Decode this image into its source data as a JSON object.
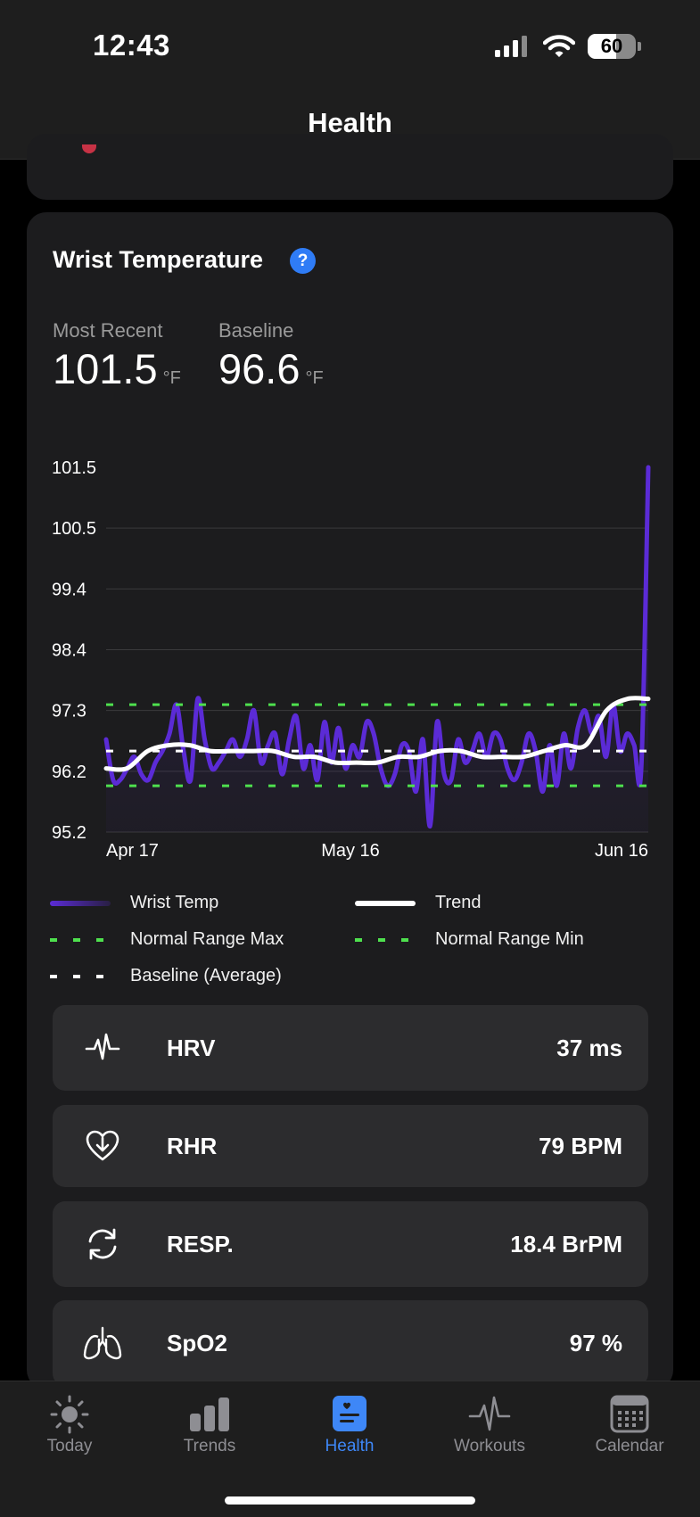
{
  "status_bar": {
    "time": "12:43",
    "battery_percent": "60",
    "battery_level": 0.6
  },
  "header": {
    "title": "Health"
  },
  "card": {
    "title": "Wrist Temperature",
    "help_icon": "question-mark-icon",
    "most_recent": {
      "label": "Most Recent",
      "value": "101.5",
      "unit": "°F"
    },
    "baseline": {
      "label": "Baseline",
      "value": "96.6",
      "unit": "°F"
    }
  },
  "chart_data": {
    "type": "line",
    "y_ticks": [
      "101.5",
      "100.5",
      "99.4",
      "98.4",
      "97.3",
      "96.2",
      "95.2"
    ],
    "x_ticks": [
      "Apr 17",
      "May 16",
      "Jun 16"
    ],
    "ylim": [
      95.2,
      101.5
    ],
    "grid": "y",
    "series": [
      {
        "name": "Wrist Temp",
        "color": "#5b2bd6",
        "kind": "line",
        "values": [
          96.8,
          96.1,
          96.1,
          96.3,
          96.5,
          96.2,
          96.1,
          96.4,
          96.6,
          96.9,
          97.4,
          96.6,
          96.1,
          97.5,
          96.8,
          96.3,
          96.4,
          96.6,
          96.8,
          96.5,
          96.8,
          97.3,
          96.4,
          96.7,
          96.9,
          96.2,
          96.8,
          97.2,
          96.3,
          96.7,
          96.1,
          97.1,
          96.4,
          97.0,
          96.3,
          96.7,
          96.5,
          97.1,
          96.9,
          96.3,
          96.0,
          96.2,
          96.7,
          96.6,
          95.9,
          96.8,
          95.3,
          97.1,
          96.2,
          96.1,
          96.8,
          96.4,
          96.6,
          96.9,
          96.5,
          96.9,
          96.8,
          96.3,
          96.1,
          96.4,
          96.9,
          96.6,
          95.9,
          96.7,
          96.0,
          96.9,
          96.3,
          97.0,
          97.3,
          96.9,
          97.2,
          96.5,
          97.4,
          96.6,
          96.9,
          96.7,
          96.3,
          101.5
        ]
      },
      {
        "name": "Trend",
        "color": "#ffffff",
        "kind": "line",
        "values": [
          96.3,
          96.3,
          96.6,
          96.7,
          96.7,
          96.6,
          96.6,
          96.6,
          96.6,
          96.5,
          96.5,
          96.4,
          96.4,
          96.4,
          96.5,
          96.5,
          96.6,
          96.6,
          96.5,
          96.5,
          96.5,
          96.6,
          96.7,
          96.7,
          97.3,
          97.5,
          97.5
        ]
      },
      {
        "name": "Normal Range Max",
        "color": "#4ee04e",
        "kind": "dashed",
        "value": 97.4
      },
      {
        "name": "Normal Range Min",
        "color": "#4ee04e",
        "kind": "dashed",
        "value": 96.0
      },
      {
        "name": "Baseline (Average)",
        "color": "#ffffff",
        "kind": "dashed",
        "value": 96.6
      }
    ]
  },
  "legend": [
    {
      "label": "Wrist Temp",
      "swatch": "purple-line"
    },
    {
      "label": "Trend",
      "swatch": "white-line"
    },
    {
      "label": "Normal Range Max",
      "swatch": "green-dashed"
    },
    {
      "label": "Normal Range Min",
      "swatch": "green-dashed"
    },
    {
      "label": "Baseline (Average)",
      "swatch": "white-dashed"
    }
  ],
  "vitals": [
    {
      "name": "HRV",
      "value": "37 ms",
      "icon": "heartbeat-wave-icon"
    },
    {
      "name": "RHR",
      "value": "79 BPM",
      "icon": "heart-down-arrow-icon"
    },
    {
      "name": "RESP.",
      "value": "18.4 BrPM",
      "icon": "refresh-cycle-icon"
    },
    {
      "name": "SpO2",
      "value": "97 %",
      "icon": "lungs-icon"
    }
  ],
  "tabs": [
    {
      "label": "Today",
      "icon": "sun-icon",
      "active": false
    },
    {
      "label": "Trends",
      "icon": "bar-chart-icon",
      "active": false
    },
    {
      "label": "Health",
      "icon": "health-doc-icon",
      "active": true
    },
    {
      "label": "Workouts",
      "icon": "pulse-icon",
      "active": false
    },
    {
      "label": "Calendar",
      "icon": "calendar-icon",
      "active": false
    }
  ],
  "colors": {
    "accent": "#3e87f7",
    "purple": "#5b2bd6",
    "green": "#4ee04e",
    "card": "#1c1c1e",
    "row": "#2c2c2e"
  }
}
